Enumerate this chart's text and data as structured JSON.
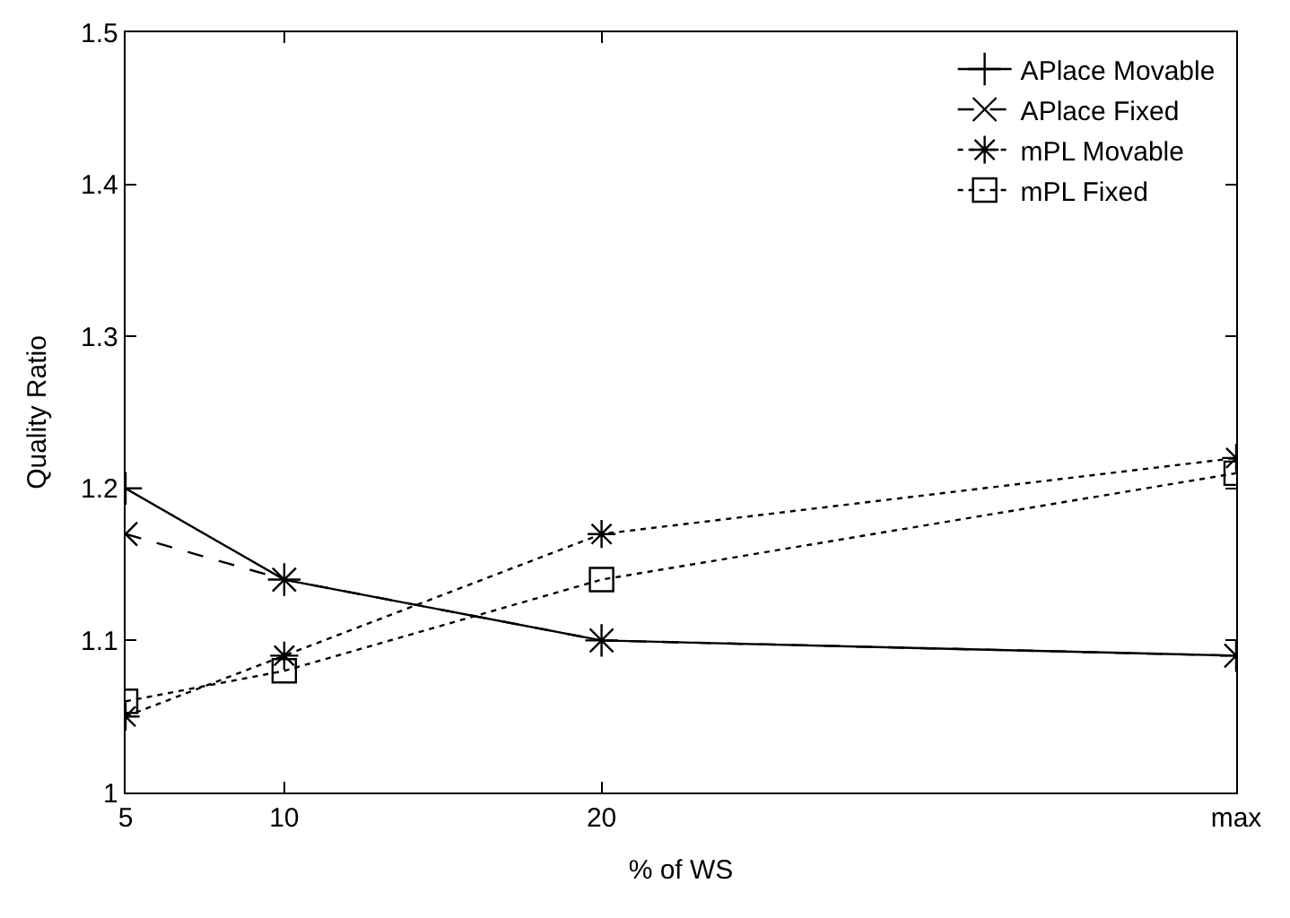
{
  "chart_data": {
    "type": "line",
    "xlabel": "% of WS",
    "ylabel": "Quality Ratio",
    "x": [
      5,
      10,
      20,
      40
    ],
    "xlim": [
      5,
      40
    ],
    "xticks": [
      5,
      10,
      20,
      {
        "value": 40,
        "label": "max"
      }
    ],
    "ylim": [
      1,
      1.5
    ],
    "yticks": [
      1,
      1.1,
      1.2,
      1.3,
      1.4,
      1.5
    ],
    "legend": "top right",
    "series": [
      {
        "name": "APlace Movable",
        "color": "#000000",
        "values": [
          1.2,
          1.14,
          1.1,
          1.09
        ],
        "marker": "cross",
        "line_style": "solid"
      },
      {
        "name": "APlace Fixed",
        "color": "#000000",
        "values": [
          1.17,
          1.14,
          1.1,
          1.09
        ],
        "marker": "x",
        "line_style": "dashed"
      },
      {
        "name": "mPL Movable",
        "color": "#000000",
        "values": [
          1.05,
          1.09,
          1.17,
          1.22
        ],
        "marker": "cross",
        "line_style": "dotted"
      },
      {
        "name": "mPL Fixed",
        "color": "#000000",
        "values": [
          1.06,
          1.08,
          1.14,
          1.21
        ],
        "marker": "square",
        "line_style": "dotted"
      }
    ]
  }
}
